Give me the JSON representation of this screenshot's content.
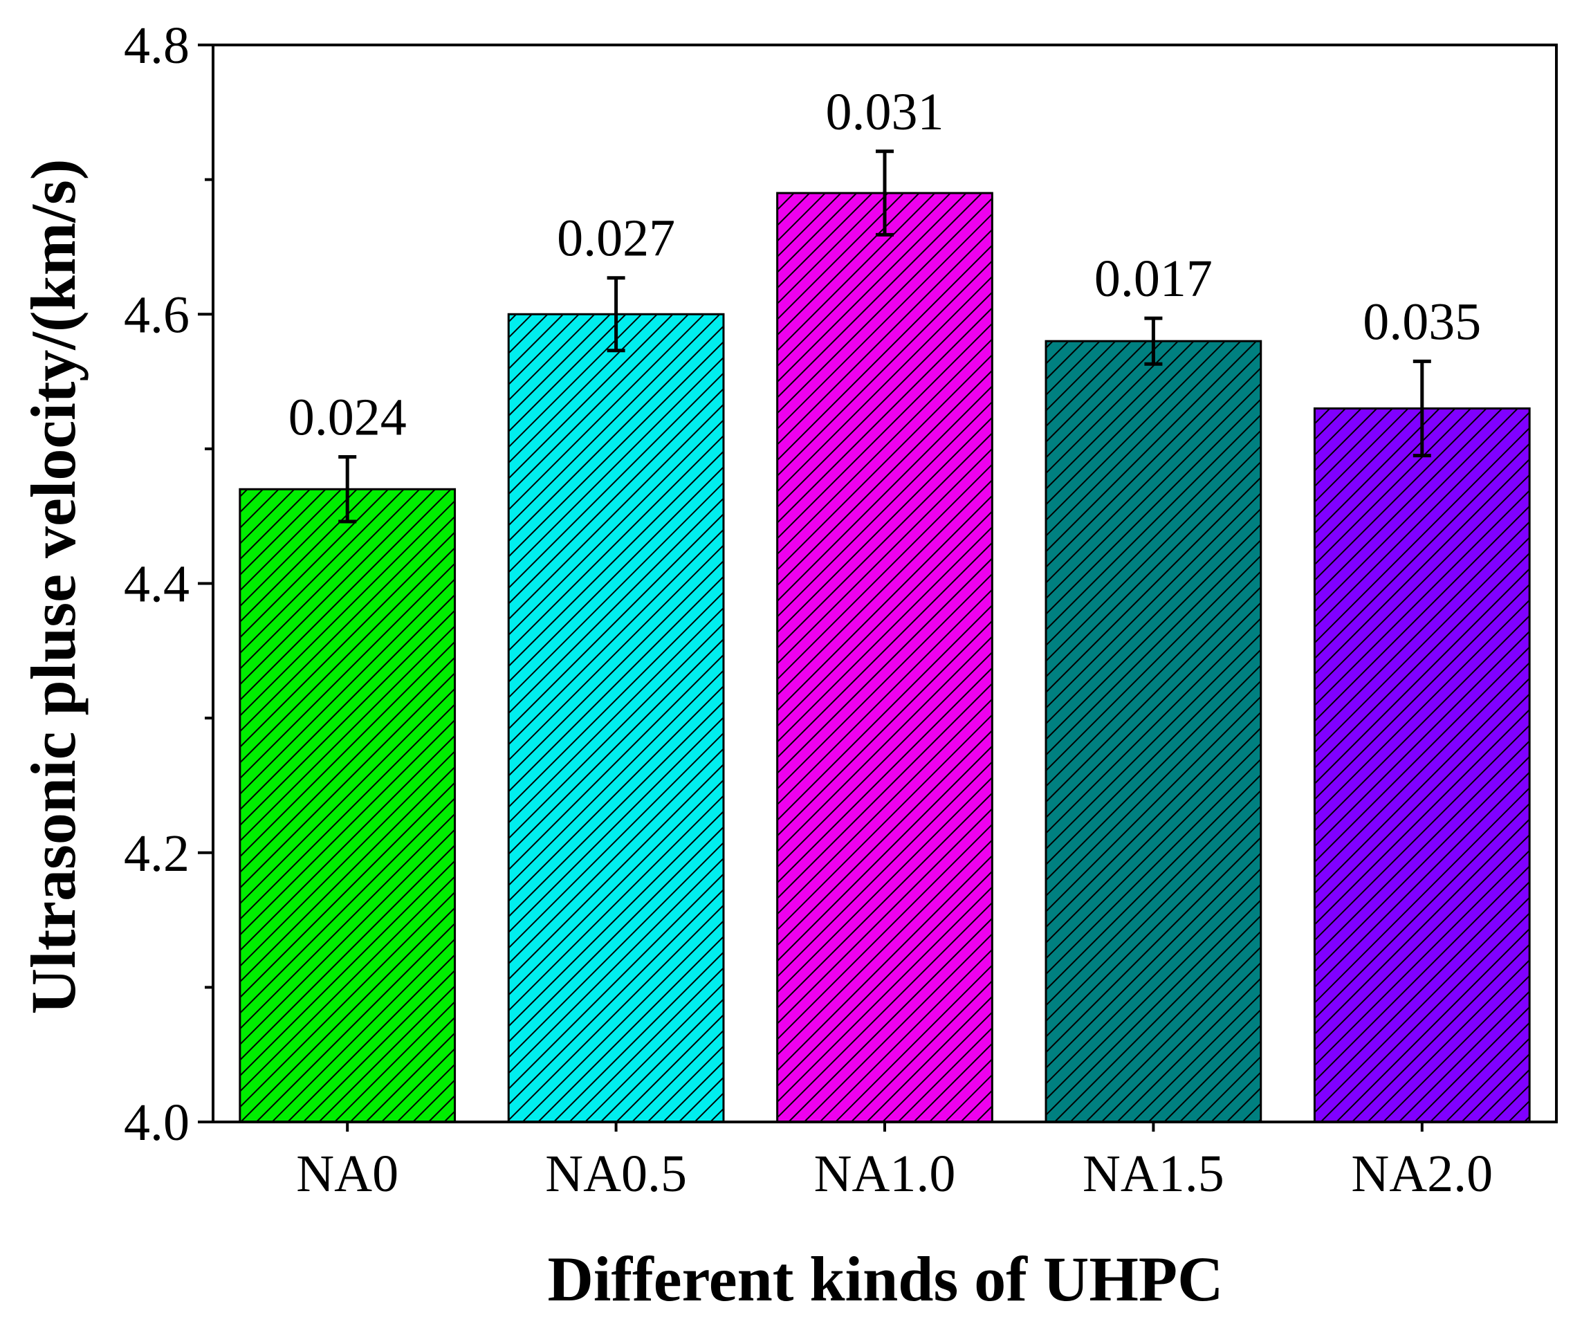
{
  "chart_data": {
    "type": "bar",
    "categories": [
      "NA0",
      "NA0.5",
      "NA1.0",
      "NA1.5",
      "NA2.0"
    ],
    "values": [
      4.47,
      4.6,
      4.69,
      4.58,
      4.53
    ],
    "errors": [
      0.024,
      0.027,
      0.031,
      0.017,
      0.035
    ],
    "data_labels": [
      "0.024",
      "0.027",
      "0.031",
      "0.017",
      "0.035"
    ],
    "colors": [
      "#00ee00",
      "#00eeee",
      "#ee00ee",
      "#008080",
      "#8000ff"
    ],
    "pattern": "diagonal-hatch",
    "title": "",
    "xlabel": "Different kinds of UHPC",
    "ylabel": "Ultrasonic pluse velocity/(km/s)",
    "ylim": [
      4.0,
      4.8
    ],
    "yticks": [
      "4.0",
      "4.2",
      "4.4",
      "4.6",
      "4.8"
    ],
    "grid": false,
    "legend": "none"
  }
}
